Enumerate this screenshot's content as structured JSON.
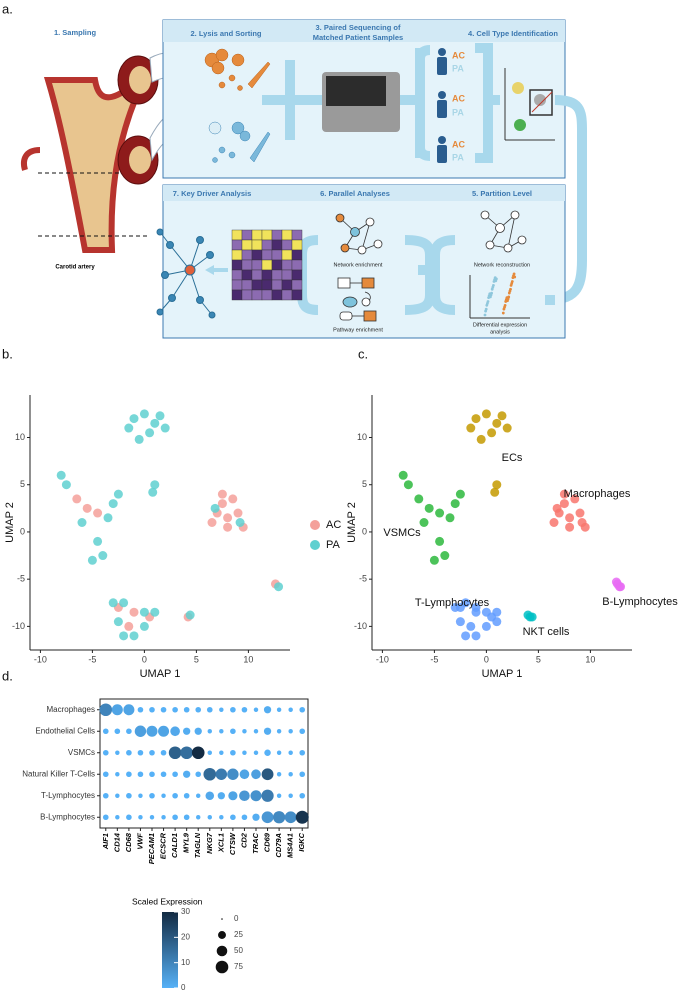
{
  "panels": [
    "a.",
    "b.",
    "c.",
    "d."
  ],
  "diagram": {
    "step1": "1. Sampling",
    "step2": "2. Lysis and Sorting",
    "step3": [
      "3. Paired Sequencing of",
      "Matched Patient Samples"
    ],
    "step4": "4. Cell Type Identification",
    "step5": "5. Partition Level",
    "step6": "6. Parallel Analyses",
    "step7": "7. Key Driver Analysis",
    "groups": [
      "AC",
      "PA"
    ],
    "artery": "Carotid artery",
    "network_enrichment": "Network enrichment",
    "pathway_enrichment": "Pathway enrichment",
    "network_reconstruction": "Network reconstruction",
    "differential": [
      "Differential expression",
      "analysis"
    ]
  },
  "chart_data": [
    {
      "type": "scatter",
      "xlabel": "UMAP 1",
      "ylabel": "UMAP 2",
      "xlim": [
        -11,
        14
      ],
      "ylim": [
        -12.5,
        14.5
      ],
      "xticks": [
        -10,
        -5,
        0,
        5,
        10
      ],
      "yticks": [
        -10,
        -5,
        0,
        5,
        10
      ],
      "legend": "right",
      "series": [
        {
          "name": "AC",
          "color": "#f4a09a",
          "x": [
            7.5,
            8.5,
            7,
            8,
            9,
            6.5,
            8,
            9.5,
            7.5,
            -2.5,
            -1,
            0.5,
            -1.5,
            -5.5,
            -4.5,
            -6.5,
            4.2,
            12.6
          ],
          "y": [
            4,
            3.5,
            2,
            1.5,
            2,
            1,
            0.5,
            0.5,
            3,
            -8,
            -8.5,
            -9,
            -10,
            2.5,
            2,
            3.5,
            -9,
            -5.5
          ]
        },
        {
          "name": "PA",
          "color": "#5fd0d0",
          "x": [
            -1,
            0,
            1,
            2,
            0.5,
            -1.5,
            1.5,
            -0.5,
            0.8,
            1,
            -8,
            -7.5,
            -3.5,
            -6,
            -4.5,
            -4,
            -5,
            -3,
            -2.5,
            9.2,
            6.8,
            -3,
            -2,
            0,
            1,
            -2.5,
            0,
            -1,
            -2,
            4.4,
            12.9
          ],
          "y": [
            12,
            12.5,
            11.5,
            11,
            10.5,
            11,
            12.3,
            9.8,
            4.2,
            5,
            6,
            5,
            1.5,
            1,
            -1,
            -2.5,
            -3,
            3,
            4,
            1,
            2.5,
            -7.5,
            -7.5,
            -8.5,
            -8.5,
            -9.5,
            -10,
            -11,
            -11,
            -8.8,
            -5.8
          ]
        }
      ]
    },
    {
      "type": "scatter",
      "xlabel": "UMAP 1",
      "ylabel": "UMAP 2",
      "xlim": [
        -11,
        14
      ],
      "ylim": [
        -12.5,
        14.5
      ],
      "xticks": [
        -10,
        -5,
        0,
        5,
        10
      ],
      "yticks": [
        -10,
        -5,
        0,
        5,
        10
      ],
      "series": [
        {
          "name": "ECs",
          "color": "#c49a00",
          "x": [
            -1,
            0,
            1,
            2,
            0.5,
            -1.5,
            1.5,
            -0.5,
            0.8,
            1
          ],
          "y": [
            12,
            12.5,
            11.5,
            11,
            10.5,
            11,
            12.3,
            9.8,
            4.2,
            5
          ]
        },
        {
          "name": "VSMCs",
          "color": "#2db83d",
          "x": [
            -8,
            -7.5,
            -6.5,
            -5.5,
            -4.5,
            -3.5,
            -6,
            -4.5,
            -4,
            -5,
            -3,
            -2.5
          ],
          "y": [
            6,
            5,
            3.5,
            2.5,
            2,
            1.5,
            1,
            -1,
            -2.5,
            -3,
            3,
            4
          ]
        },
        {
          "name": "Macrophages",
          "color": "#f8766d",
          "x": [
            7.5,
            8.5,
            7,
            8,
            9,
            6.5,
            8,
            9.5,
            7.5,
            9.2,
            6.8
          ],
          "y": [
            4,
            3.5,
            2,
            1.5,
            2,
            1,
            0.5,
            0.5,
            3,
            1,
            2.5
          ]
        },
        {
          "name": "T-Lymphocytes",
          "color": "#619cff",
          "x": [
            -3,
            -2,
            -1,
            0,
            1,
            -2.5,
            -1.5,
            0,
            1,
            -1,
            -2,
            -2.5,
            -1,
            0.5
          ],
          "y": [
            -8,
            -7.5,
            -8,
            -8.5,
            -8.5,
            -9.5,
            -10,
            -10,
            -9.5,
            -11,
            -11,
            -8,
            -8.5,
            -9
          ]
        },
        {
          "name": "NKT cells",
          "color": "#00bfc4",
          "x": [
            4,
            4.4,
            4.2
          ],
          "y": [
            -8.8,
            -9,
            -9
          ]
        },
        {
          "name": "B-Lymphocytes",
          "color": "#e76bf3",
          "x": [
            12.5,
            12.8,
            12.6,
            12.9
          ],
          "y": [
            -5.3,
            -5.8,
            -5.5,
            -5.8
          ]
        }
      ]
    },
    {
      "type": "dot",
      "categories": [
        "AIF1",
        "CD14",
        "CD68",
        "VWF",
        "PECAM1",
        "ECSCR",
        "CALD1",
        "MYL9",
        "TAGLN",
        "NKG7",
        "XCL1",
        "CTSW",
        "CD2",
        "TRAC",
        "CD69",
        "CD79A",
        "MS4A1",
        "IGKC"
      ],
      "rows": [
        "Macrophages",
        "Endothelial Cells",
        "VSMCs",
        "Natural Killer T-Cells",
        "T-Lymphocytes",
        "B-Lymphocytes"
      ],
      "pct": [
        [
          75,
          55,
          55,
          10,
          10,
          10,
          10,
          10,
          10,
          10,
          5,
          10,
          10,
          5,
          20,
          5,
          5,
          10
        ],
        [
          10,
          10,
          10,
          60,
          55,
          55,
          40,
          20,
          20,
          5,
          5,
          10,
          5,
          5,
          20,
          5,
          5,
          10
        ],
        [
          10,
          5,
          10,
          10,
          10,
          10,
          75,
          75,
          75,
          5,
          5,
          10,
          5,
          5,
          15,
          5,
          5,
          10
        ],
        [
          10,
          5,
          10,
          10,
          10,
          10,
          10,
          20,
          10,
          75,
          60,
          60,
          40,
          40,
          65,
          5,
          5,
          10
        ],
        [
          10,
          5,
          10,
          5,
          10,
          5,
          10,
          10,
          5,
          30,
          20,
          35,
          50,
          55,
          70,
          5,
          5,
          10
        ],
        [
          10,
          5,
          10,
          5,
          5,
          5,
          10,
          10,
          5,
          5,
          5,
          10,
          10,
          20,
          65,
          70,
          65,
          80
        ]
      ],
      "expr": [
        [
          10,
          3,
          3,
          0,
          0,
          0,
          0,
          0,
          0,
          0,
          0,
          0,
          0,
          0,
          1,
          0,
          0,
          0
        ],
        [
          0,
          0,
          0,
          4,
          3,
          3,
          2,
          1,
          1,
          0,
          0,
          0,
          0,
          0,
          1,
          0,
          0,
          0
        ],
        [
          0,
          0,
          0,
          0,
          0,
          0,
          18,
          15,
          30,
          0,
          0,
          0,
          0,
          0,
          0,
          0,
          0,
          0
        ],
        [
          0,
          0,
          0,
          0,
          0,
          0,
          0,
          1,
          0,
          16,
          12,
          8,
          3,
          4,
          20,
          0,
          0,
          0
        ],
        [
          0,
          0,
          0,
          0,
          0,
          0,
          0,
          0,
          0,
          2,
          1,
          3,
          6,
          7,
          12,
          0,
          0,
          0
        ],
        [
          0,
          0,
          0,
          0,
          0,
          0,
          0,
          0,
          0,
          0,
          0,
          0,
          0,
          1,
          6,
          9,
          8,
          28
        ]
      ],
      "color_legend": {
        "title": "Scaled Expression",
        "lim": [
          0,
          30
        ],
        "ticks": [
          0,
          10,
          20,
          30
        ],
        "low": "#56b1f7",
        "high": "#132b43"
      },
      "size_legend": {
        "ticks": [
          0,
          25,
          50,
          75
        ]
      }
    }
  ]
}
